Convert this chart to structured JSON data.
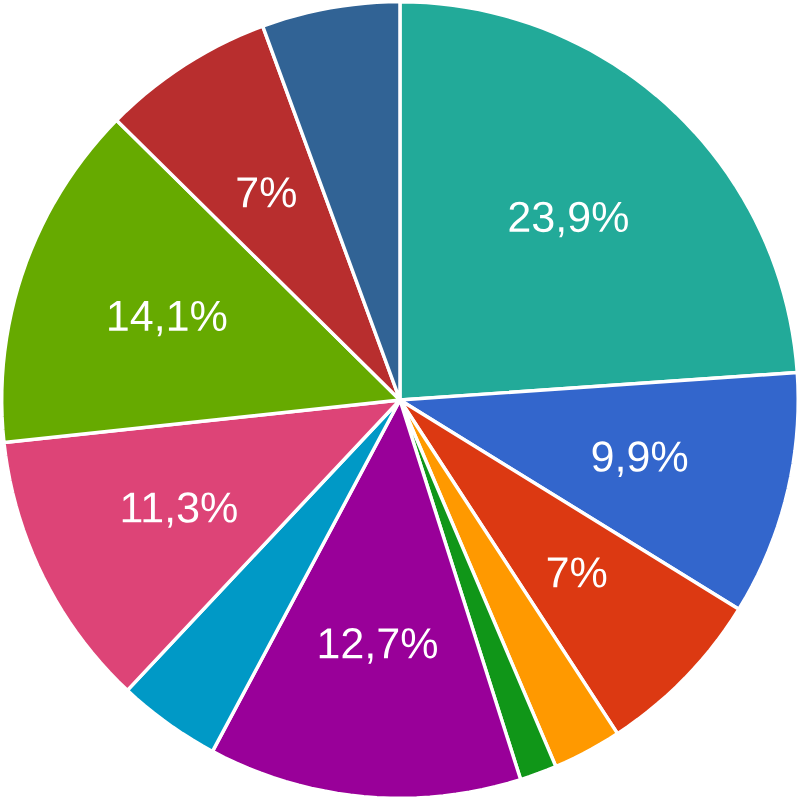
{
  "chart_data": {
    "type": "pie",
    "categories": [
      null,
      null,
      null,
      null,
      null,
      null,
      null,
      null,
      null,
      null,
      null
    ],
    "values": [
      23.9,
      9.9,
      7,
      2.8,
      1.5,
      12.7,
      4.2,
      11.3,
      14.1,
      7,
      5.6
    ],
    "value_labels": [
      "23,9%",
      "9,9%",
      "7%",
      null,
      null,
      "12,7%",
      null,
      "11,3%",
      "14,1%",
      "7%",
      null
    ],
    "colors": [
      "#22aa99",
      "#3366cc",
      "#dc3912",
      "#ff9900",
      "#109618",
      "#990099",
      "#0099c6",
      "#dd4477",
      "#66aa00",
      "#b82e2e",
      "#316395"
    ]
  }
}
